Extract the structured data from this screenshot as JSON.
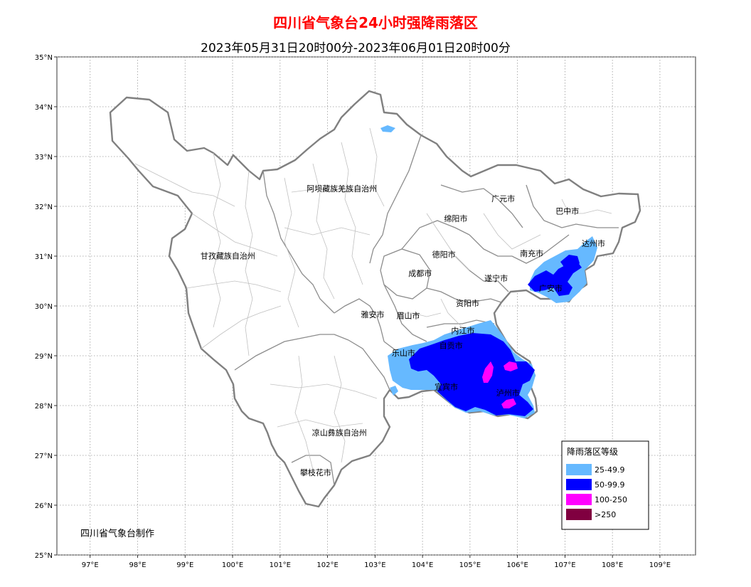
{
  "title": "四川省气象台24小时强降雨落区",
  "subtitle": "2023年05月31日20时00分-2023年06月01日20时00分",
  "credit": "四川省气象台制作",
  "map": {
    "lon_range": [
      96.3,
      109.75
    ],
    "lat_range": [
      25,
      35
    ],
    "lon_ticks": [
      "97°E",
      "98°E",
      "99°E",
      "100°E",
      "101°E",
      "102°E",
      "103°E",
      "104°E",
      "105°E",
      "106°E",
      "107°E",
      "108°E",
      "109°E"
    ],
    "lat_ticks": [
      "35°N",
      "34°N",
      "33°N",
      "32°N",
      "31°N",
      "30°N",
      "29°N",
      "28°N",
      "27°N",
      "26°N",
      "25°N"
    ],
    "gridlines": "dotted",
    "colors": {
      "province_border": "#808080",
      "prefecture_border": "#8c8c8c",
      "county_border": "#c0c0c0",
      "grid": "#9a9a9a"
    },
    "cities": [
      {
        "name": "阿坝藏族羌族自治州",
        "lon": 102.3,
        "lat": 32.3
      },
      {
        "name": "甘孜藏族自治州",
        "lon": 99.9,
        "lat": 30.95
      },
      {
        "name": "广元市",
        "lon": 105.7,
        "lat": 32.1
      },
      {
        "name": "巴中市",
        "lon": 107.05,
        "lat": 31.85
      },
      {
        "name": "绵阳市",
        "lon": 104.7,
        "lat": 31.7
      },
      {
        "name": "达州市",
        "lon": 107.6,
        "lat": 31.2
      },
      {
        "name": "南充市",
        "lon": 106.3,
        "lat": 31.0
      },
      {
        "name": "德阳市",
        "lon": 104.45,
        "lat": 30.98
      },
      {
        "name": "成都市",
        "lon": 103.95,
        "lat": 30.6
      },
      {
        "name": "遂宁市",
        "lon": 105.55,
        "lat": 30.5
      },
      {
        "name": "广安市",
        "lon": 106.7,
        "lat": 30.3
      },
      {
        "name": "资阳市",
        "lon": 104.95,
        "lat": 30.0
      },
      {
        "name": "雅安市",
        "lon": 102.95,
        "lat": 29.77
      },
      {
        "name": "眉山市",
        "lon": 103.7,
        "lat": 29.75
      },
      {
        "name": "内江市",
        "lon": 104.85,
        "lat": 29.45
      },
      {
        "name": "乐山市",
        "lon": 103.6,
        "lat": 29.0
      },
      {
        "name": "自贡市",
        "lon": 104.6,
        "lat": 29.15
      },
      {
        "name": "宜宾市",
        "lon": 104.5,
        "lat": 28.32
      },
      {
        "name": "泸州市",
        "lon": 105.8,
        "lat": 28.2
      },
      {
        "name": "凉山彝族自治州",
        "lon": 102.25,
        "lat": 27.4
      },
      {
        "name": "攀枝花市",
        "lon": 101.75,
        "lat": 26.6
      }
    ]
  },
  "legend": {
    "title": "降雨落区等级",
    "items": [
      {
        "label": "25-49.9",
        "color": "#66b9ff"
      },
      {
        "label": "50-99.9",
        "color": "#0000ff"
      },
      {
        "label": "100-250",
        "color": "#ff00ff"
      },
      {
        "label": ">250",
        "color": "#800040"
      }
    ]
  }
}
